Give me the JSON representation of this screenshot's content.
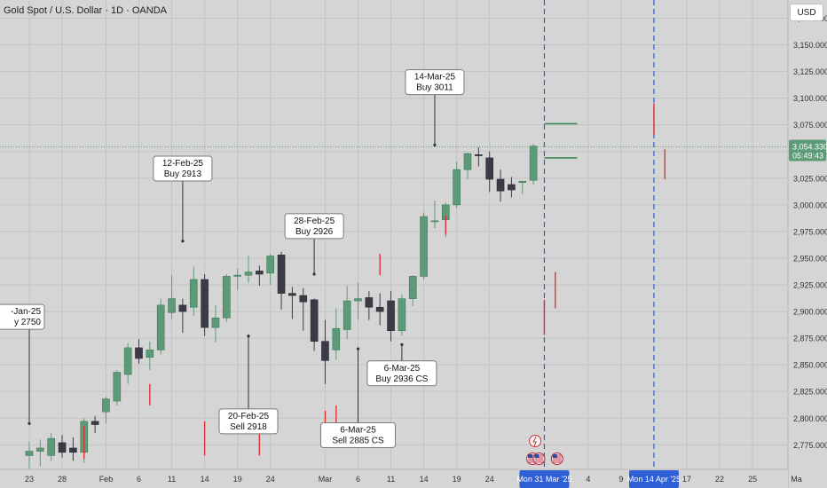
{
  "header": {
    "title": "Gold Spot / U.S. Dollar · 1D · OANDA"
  },
  "price_scale": {
    "currency_label": "USD"
  },
  "colors": {
    "background": "#d5d5d5",
    "grid": "#c4c4c4",
    "up_candle": "#5d9a78",
    "down_candle": "#3b3b47",
    "level_line": "#3f8a5a",
    "marker_line": "#e03131",
    "date_marker": "#2f5fd6",
    "last_price_tag": "#5d9a78",
    "last_price_line": "#5d9a78",
    "callout_border": "#7a7a7a"
  },
  "chart_data": {
    "type": "candlestick",
    "title": "Gold Spot / U.S. Dollar · 1D · OANDA",
    "ylim": [
      2752,
      3192
    ],
    "y_ticks": [
      "3,175.000",
      "3,150.000",
      "3,125.000",
      "3,100.000",
      "3,075.000",
      "3,050.000",
      "3,025.000",
      "3,000.000",
      "2,975.000",
      "2,950.000",
      "2,925.000",
      "2,900.000",
      "2,875.000",
      "2,850.000",
      "2,825.000",
      "2,800.000",
      "2,775.000"
    ],
    "y_tick_values": [
      3175,
      3150,
      3125,
      3100,
      3075,
      3050,
      3025,
      3000,
      2975,
      2950,
      2925,
      2900,
      2875,
      2850,
      2825,
      2800,
      2775
    ],
    "x_ticks": [
      {
        "label": "23",
        "index": 0
      },
      {
        "label": "28",
        "index": 3
      },
      {
        "label": "Feb",
        "index": 7
      },
      {
        "label": "6",
        "index": 10
      },
      {
        "label": "11",
        "index": 13
      },
      {
        "label": "14",
        "index": 16
      },
      {
        "label": "19",
        "index": 19
      },
      {
        "label": "24",
        "index": 22
      },
      {
        "label": "Mar",
        "index": 27
      },
      {
        "label": "6",
        "index": 30
      },
      {
        "label": "11",
        "index": 33
      },
      {
        "label": "14",
        "index": 36
      },
      {
        "label": "19",
        "index": 39
      },
      {
        "label": "24",
        "index": 42
      },
      {
        "label": "4",
        "index": 51
      },
      {
        "label": "9",
        "index": 54
      },
      {
        "label": "17",
        "index": 60
      },
      {
        "label": "22",
        "index": 63
      },
      {
        "label": "25",
        "index": 66
      },
      {
        "label": "Ma",
        "index": 70
      }
    ],
    "candles": [
      {
        "i": 0,
        "o": 2765,
        "h": 2778,
        "l": 2750,
        "c": 2769
      },
      {
        "i": 1,
        "o": 2769,
        "h": 2780,
        "l": 2755,
        "c": 2772
      },
      {
        "i": 2,
        "o": 2765,
        "h": 2786,
        "l": 2760,
        "c": 2781
      },
      {
        "i": 3,
        "o": 2777,
        "h": 2784,
        "l": 2763,
        "c": 2768
      },
      {
        "i": 4,
        "o": 2772,
        "h": 2782,
        "l": 2760,
        "c": 2768
      },
      {
        "i": 5,
        "o": 2768,
        "h": 2800,
        "l": 2758,
        "c": 2797
      },
      {
        "i": 6,
        "o": 2797,
        "h": 2802,
        "l": 2786,
        "c": 2794
      },
      {
        "i": 7,
        "o": 2806,
        "h": 2820,
        "l": 2795,
        "c": 2818
      },
      {
        "i": 8,
        "o": 2816,
        "h": 2845,
        "l": 2812,
        "c": 2843
      },
      {
        "i": 9,
        "o": 2841,
        "h": 2870,
        "l": 2832,
        "c": 2866
      },
      {
        "i": 10,
        "o": 2866,
        "h": 2874,
        "l": 2851,
        "c": 2856
      },
      {
        "i": 11,
        "o": 2857,
        "h": 2872,
        "l": 2845,
        "c": 2864
      },
      {
        "i": 12,
        "o": 2864,
        "h": 2912,
        "l": 2860,
        "c": 2906
      },
      {
        "i": 13,
        "o": 2899,
        "h": 2934,
        "l": 2893,
        "c": 2912
      },
      {
        "i": 14,
        "o": 2906,
        "h": 2912,
        "l": 2880,
        "c": 2900
      },
      {
        "i": 15,
        "o": 2904,
        "h": 2942,
        "l": 2896,
        "c": 2930
      },
      {
        "i": 16,
        "o": 2930,
        "h": 2935,
        "l": 2877,
        "c": 2885
      },
      {
        "i": 17,
        "o": 2885,
        "h": 2906,
        "l": 2871,
        "c": 2894
      },
      {
        "i": 18,
        "o": 2894,
        "h": 2935,
        "l": 2890,
        "c": 2933
      },
      {
        "i": 19,
        "o": 2933,
        "h": 2940,
        "l": 2920,
        "c": 2934
      },
      {
        "i": 20,
        "o": 2934,
        "h": 2952,
        "l": 2927,
        "c": 2937
      },
      {
        "i": 21,
        "o": 2938,
        "h": 2943,
        "l": 2924,
        "c": 2935
      },
      {
        "i": 22,
        "o": 2936,
        "h": 2954,
        "l": 2925,
        "c": 2952
      },
      {
        "i": 23,
        "o": 2953,
        "h": 2956,
        "l": 2902,
        "c": 2917
      },
      {
        "i": 24,
        "o": 2917,
        "h": 2923,
        "l": 2893,
        "c": 2915
      },
      {
        "i": 25,
        "o": 2915,
        "h": 2922,
        "l": 2882,
        "c": 2909
      },
      {
        "i": 26,
        "o": 2911,
        "h": 2912,
        "l": 2863,
        "c": 2872
      },
      {
        "i": 27,
        "o": 2872,
        "h": 2892,
        "l": 2832,
        "c": 2854
      },
      {
        "i": 28,
        "o": 2864,
        "h": 2903,
        "l": 2855,
        "c": 2884
      },
      {
        "i": 29,
        "o": 2883,
        "h": 2924,
        "l": 2874,
        "c": 2910
      },
      {
        "i": 30,
        "o": 2910,
        "h": 2927,
        "l": 2892,
        "c": 2912
      },
      {
        "i": 31,
        "o": 2913,
        "h": 2919,
        "l": 2892,
        "c": 2904
      },
      {
        "i": 32,
        "o": 2904,
        "h": 2917,
        "l": 2887,
        "c": 2900
      },
      {
        "i": 33,
        "o": 2910,
        "h": 2919,
        "l": 2872,
        "c": 2882
      },
      {
        "i": 34,
        "o": 2882,
        "h": 2916,
        "l": 2877,
        "c": 2912
      },
      {
        "i": 35,
        "o": 2912,
        "h": 2934,
        "l": 2905,
        "c": 2933
      },
      {
        "i": 36,
        "o": 2933,
        "h": 2993,
        "l": 2930,
        "c": 2989
      },
      {
        "i": 37,
        "o": 2985,
        "h": 3004,
        "l": 2978,
        "c": 2985
      },
      {
        "i": 38,
        "o": 2986,
        "h": 3002,
        "l": 2970,
        "c": 3000
      },
      {
        "i": 39,
        "o": 3000,
        "h": 3040,
        "l": 2997,
        "c": 3033
      },
      {
        "i": 40,
        "o": 3033,
        "h": 3049,
        "l": 3024,
        "c": 3048
      },
      {
        "i": 41,
        "o": 3047,
        "h": 3054,
        "l": 3036,
        "c": 3046
      },
      {
        "i": 42,
        "o": 3044,
        "h": 3050,
        "l": 3012,
        "c": 3024
      },
      {
        "i": 43,
        "o": 3024,
        "h": 3033,
        "l": 3003,
        "c": 3013
      },
      {
        "i": 44,
        "o": 3019,
        "h": 3026,
        "l": 3007,
        "c": 3014
      },
      {
        "i": 45,
        "o": 3021,
        "h": 3022,
        "l": 3010,
        "c": 3022
      },
      {
        "i": 46,
        "o": 3023,
        "h": 3057,
        "l": 3019,
        "c": 3055
      }
    ],
    "level_lines": [
      {
        "from_index": 47,
        "to_index": 50,
        "value": 3076
      },
      {
        "from_index": 47,
        "to_index": 50,
        "value": 3044
      }
    ],
    "marker_wicks": [
      {
        "index": 5,
        "low": 2762,
        "high": 2793
      },
      {
        "index": 11,
        "low": 2812,
        "high": 2832
      },
      {
        "index": 16,
        "low": 2765,
        "high": 2797
      },
      {
        "index": 21,
        "low": 2765,
        "high": 2787
      },
      {
        "index": 27,
        "low": 2781,
        "high": 2807
      },
      {
        "index": 28,
        "low": 2790,
        "high": 2812
      },
      {
        "index": 32,
        "low": 2934,
        "high": 2954
      },
      {
        "index": 38,
        "low": 2972,
        "high": 2990
      },
      {
        "index": 47,
        "low": 2878,
        "high": 2911
      },
      {
        "index": 48,
        "low": 2903,
        "high": 2937
      },
      {
        "index": 57,
        "low": 3066,
        "high": 3095
      },
      {
        "index": 58,
        "low": 3024,
        "high": 3052
      }
    ],
    "date_markers": [
      {
        "index": 47,
        "label": "Mon 31 Mar '25"
      },
      {
        "index": 57,
        "label": "Mon 14 Apr '25"
      }
    ],
    "last_price": {
      "value": 3054.33,
      "label": "3,054.330",
      "countdown": "05:49:43"
    },
    "annotations": [
      {
        "lines": [
          "-Jan-25",
          "y 2750"
        ],
        "anchor_index": 0,
        "anchor_value": 2795,
        "box_value": 2895,
        "clip_left": true
      },
      {
        "lines": [
          "12-Feb-25",
          "Buy 2913"
        ],
        "anchor_index": 14,
        "anchor_value": 2966,
        "box_value": 3034
      },
      {
        "lines": [
          "20-Feb-25",
          "Sell 2918"
        ],
        "anchor_index": 20,
        "anchor_value": 2877,
        "box_value": 2797
      },
      {
        "lines": [
          "28-Feb-25",
          "Buy 2926"
        ],
        "anchor_index": 26,
        "anchor_value": 2935,
        "box_value": 2980
      },
      {
        "lines": [
          "6-Mar-25",
          "Sell 2885 CS"
        ],
        "anchor_index": 30,
        "anchor_value": 2865,
        "box_value": 2784
      },
      {
        "lines": [
          "6-Mar-25",
          "Buy 2936 CS"
        ],
        "anchor_index": 34,
        "anchor_value": 2869,
        "box_value": 2842
      },
      {
        "lines": [
          "14-Mar-25",
          "Buy 3011"
        ],
        "anchor_index": 37,
        "anchor_value": 3056,
        "box_value": 3115
      }
    ]
  }
}
